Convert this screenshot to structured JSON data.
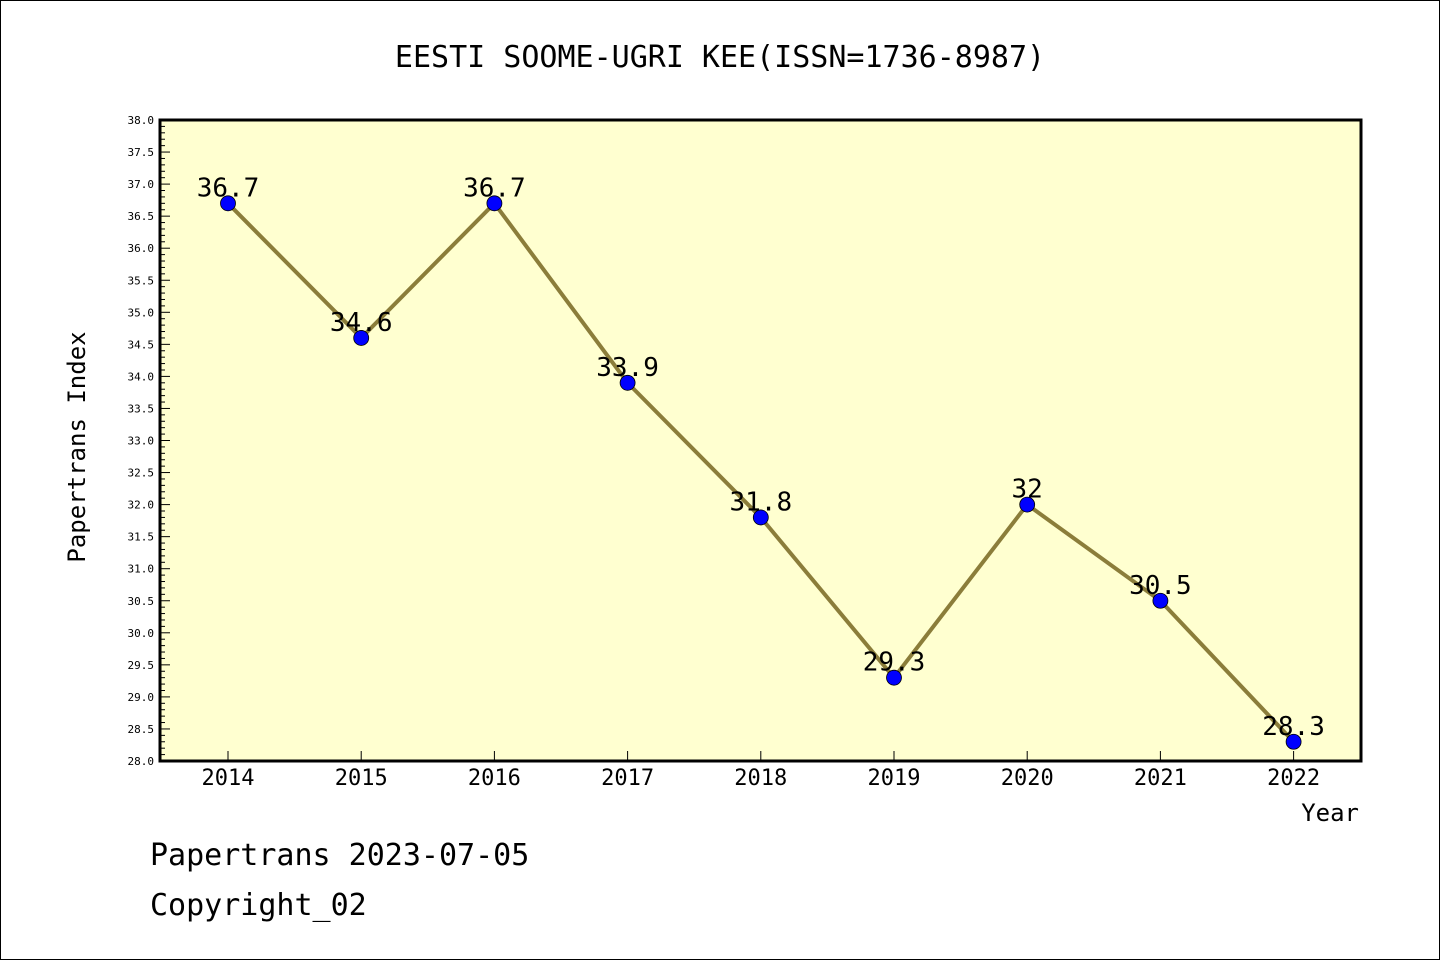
{
  "chart_data": {
    "type": "line",
    "title": "EESTI SOOME-UGRI KEE(ISSN=1736-8987)",
    "xlabel": "Year",
    "ylabel": "Papertrans Index",
    "categories": [
      "2014",
      "2015",
      "2016",
      "2017",
      "2018",
      "2019",
      "2020",
      "2021",
      "2022"
    ],
    "series": [
      {
        "values": [
          36.7,
          34.6,
          36.7,
          33.9,
          31.8,
          29.3,
          32,
          30.5,
          28.3
        ]
      }
    ],
    "data_labels": [
      "36.7",
      "34.6",
      "36.7",
      "33.9",
      "31.8",
      "29.3",
      "32",
      "30.5",
      "28.3"
    ],
    "ylim": [
      28.0,
      38.0
    ],
    "y_ticks": [
      "28.0",
      "28.5",
      "29.0",
      "29.5",
      "30.0",
      "30.5",
      "31.0",
      "31.5",
      "32.0",
      "32.5",
      "33.0",
      "33.5",
      "34.0",
      "34.5",
      "35.0",
      "35.5",
      "36.0",
      "36.5",
      "37.0",
      "37.5",
      "38.0"
    ],
    "grid": false,
    "legend": "none",
    "colors": {
      "plot_background": "#ffffd0",
      "line": "#8b7d3a",
      "marker": "#0000ff"
    }
  },
  "footer": {
    "date_line": "Papertrans 2023-07-05",
    "copyright": "Copyright_02"
  }
}
